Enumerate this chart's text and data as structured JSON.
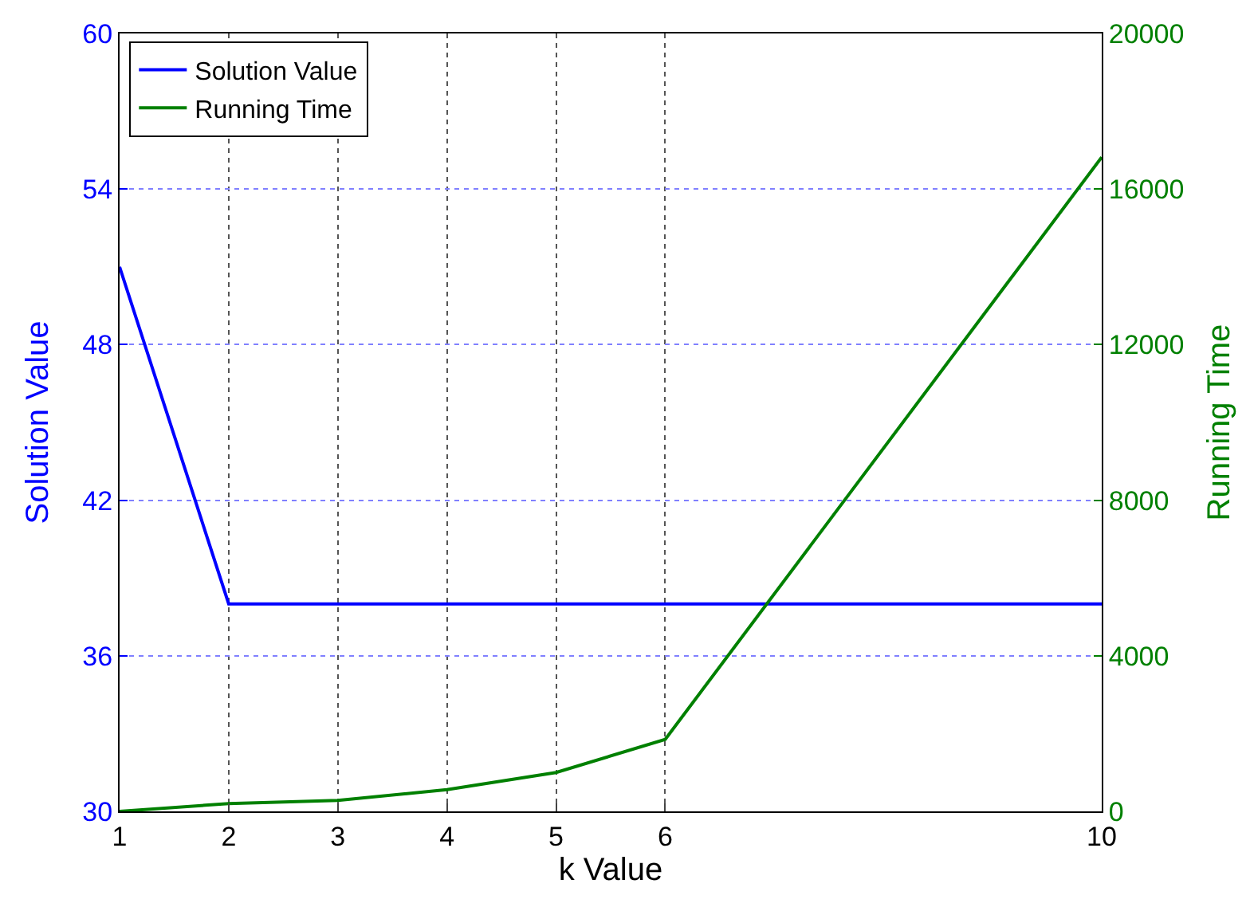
{
  "chart_data": {
    "type": "line",
    "xlabel": "k Value",
    "ylabel": "Solution Value",
    "y2label": "Running Time",
    "x": [
      1,
      2,
      3,
      4,
      5,
      6,
      10
    ],
    "series": [
      {
        "name": "Solution Value",
        "color": "#0000ff",
        "values": [
          51,
          38,
          38,
          38,
          38,
          38,
          38
        ]
      },
      {
        "name": "Running Time",
        "color": "#008000",
        "axis": "y2",
        "values": [
          0,
          200,
          280,
          560,
          1000,
          1850,
          16820
        ]
      }
    ],
    "xlim": [
      1,
      10
    ],
    "xticks": [
      1,
      2,
      3,
      4,
      5,
      6,
      10
    ],
    "ylim": [
      30,
      60
    ],
    "yticks": [
      30,
      36,
      42,
      48,
      54,
      60
    ],
    "y2lim": [
      0,
      20000
    ],
    "y2ticks": [
      0,
      4000,
      8000,
      12000,
      16000,
      20000
    ],
    "grid": true,
    "legend": "top left",
    "marker": "none",
    "line_style": "solid"
  }
}
